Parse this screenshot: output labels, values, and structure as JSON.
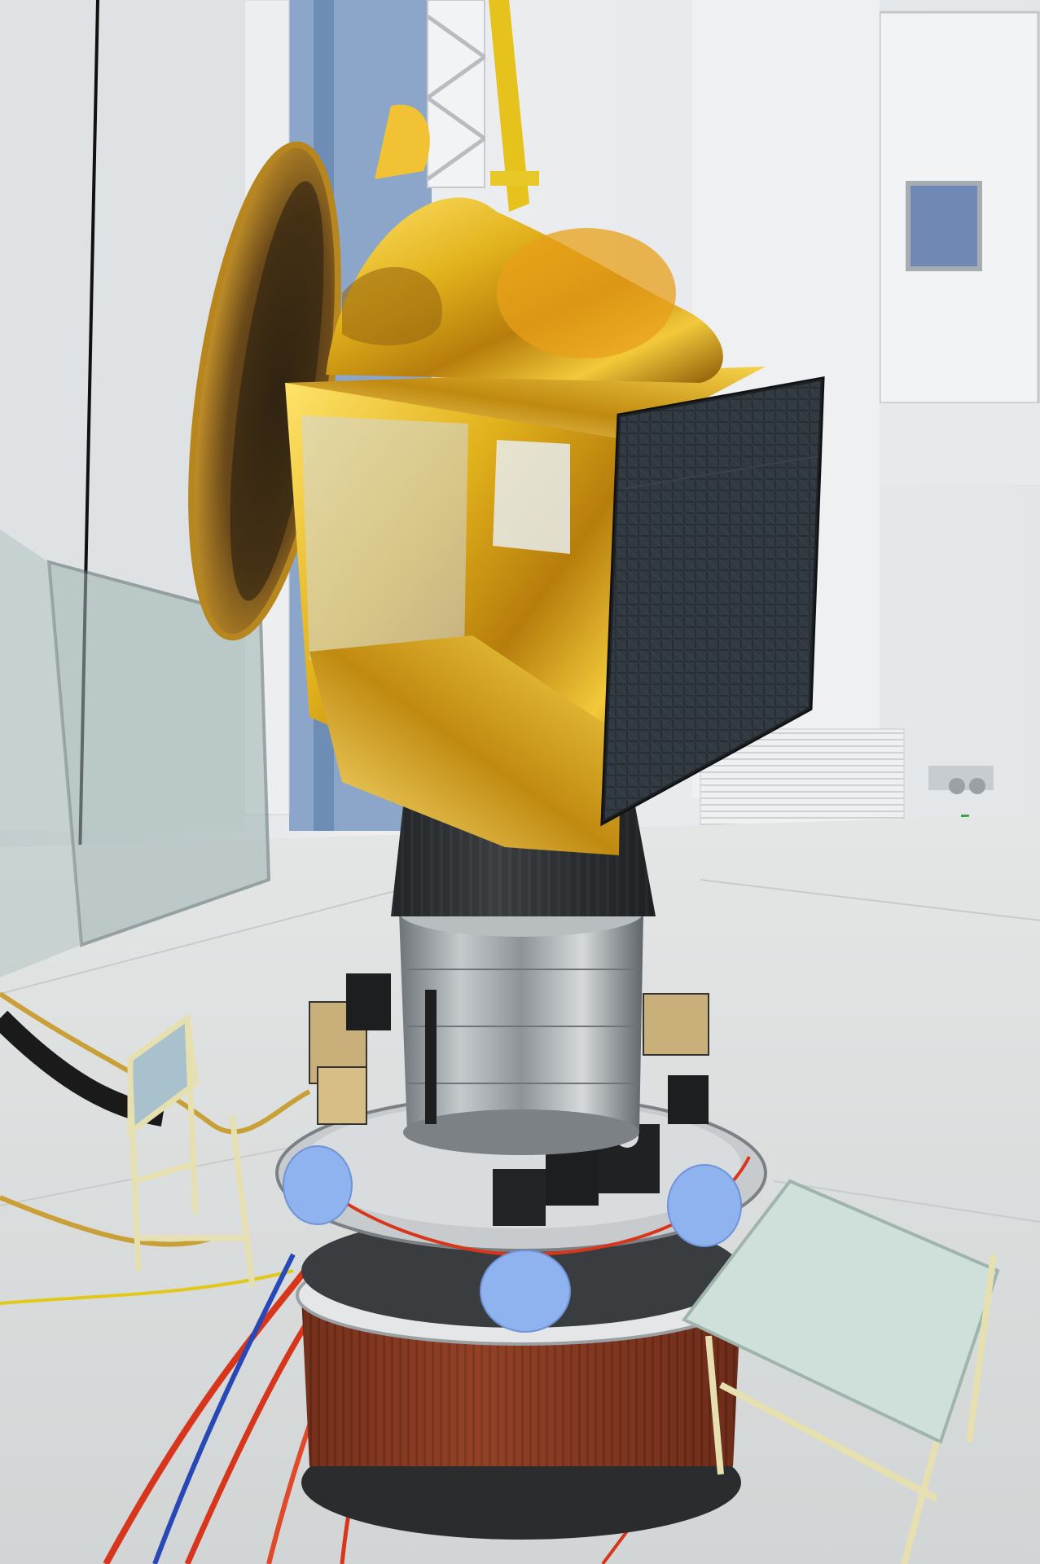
{
  "photo": {
    "subject": "spacecraft-on-launch-vehicle-upper-stage",
    "colors": {
      "wall": "#e6e9ec",
      "wall_shadow": "#c9ced3",
      "floor": "#dcdfe0",
      "foil_gold": "#e2b21c",
      "foil_light": "#ffe36a",
      "foil_dark": "#8a5a07",
      "solar_panel": "#1c2024",
      "adapter_dark": "#2b2e30",
      "steel": "#9aa0a4",
      "copper": "#8a3a22",
      "cable_red": "#d8361c",
      "cable_blue": "#2848b8",
      "cable_gold": "#c9a038",
      "glove_blue": "#8fb3ef",
      "tower_blue": "#8ba6c8",
      "platform_green": "#cfe0da"
    }
  }
}
